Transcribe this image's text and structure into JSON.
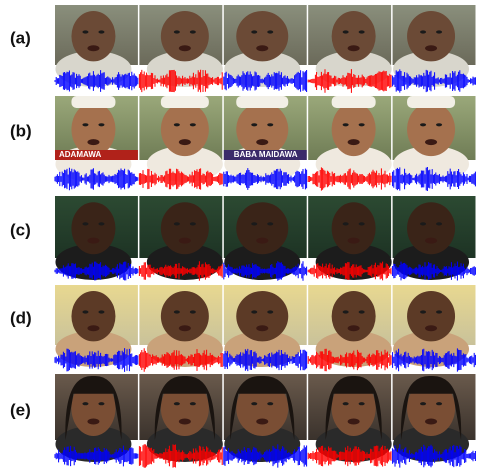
{
  "rows": [
    {
      "label": "(a)"
    },
    {
      "label": "(b)",
      "captions": [
        "ADAMAWA",
        "BABA MAIDAWA"
      ]
    },
    {
      "label": "(c)"
    },
    {
      "label": "(d)"
    },
    {
      "label": "(e)"
    }
  ]
}
